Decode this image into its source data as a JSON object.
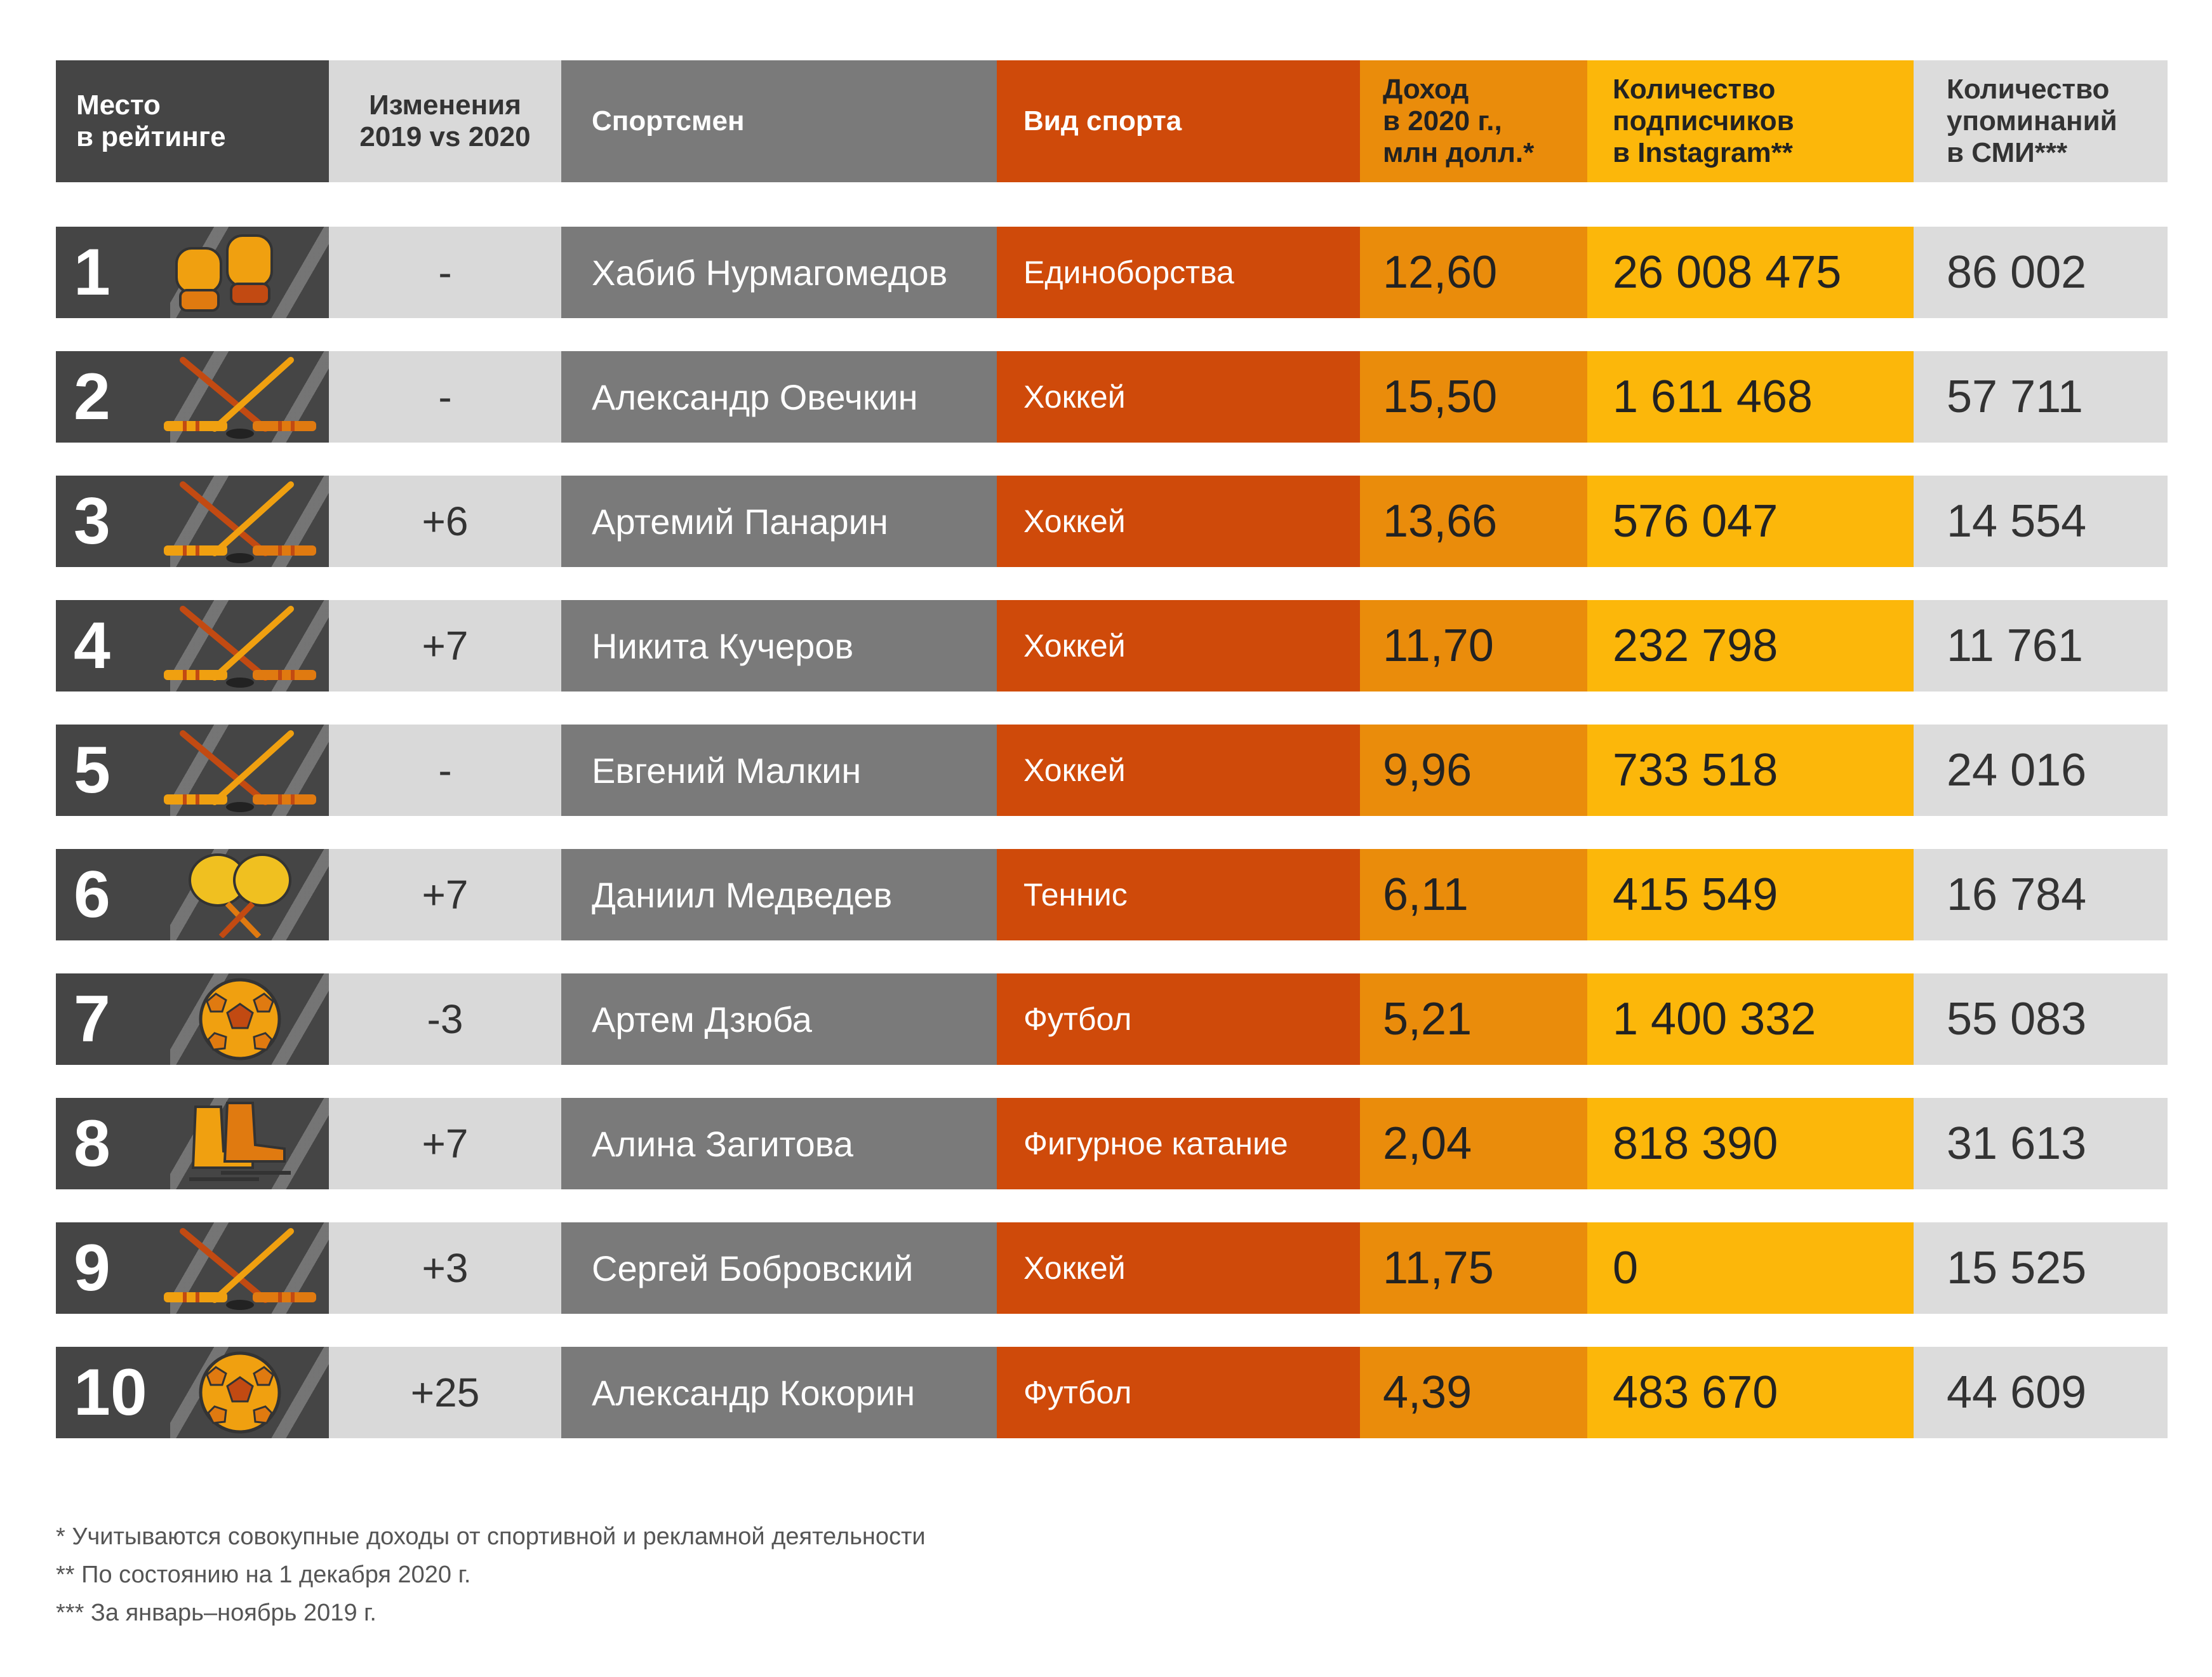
{
  "header": {
    "rank": "Место\nв рейтинге",
    "change": "Изменения\n2019 vs 2020",
    "athlete": "Спортсмен",
    "sport": "Вид спорта",
    "income": "Доход\nв 2020 г.,\nмлн долл.*",
    "followers": "Количество\nподписчиков\nв Instagram**",
    "mentions": "Количество\nупоминаний\nв СМИ***"
  },
  "rows": [
    {
      "rank": "1",
      "icon": "gloves-icon",
      "change": "-",
      "athlete": "Хабиб Нурмагомедов",
      "sport": "Единоборства",
      "income": "12,60",
      "followers": "26 008 475",
      "mentions": "86 002"
    },
    {
      "rank": "2",
      "icon": "hockey-icon",
      "change": "-",
      "athlete": "Александр Овечкин",
      "sport": "Хоккей",
      "income": "15,50",
      "followers": "1 611 468",
      "mentions": "57 711"
    },
    {
      "rank": "3",
      "icon": "hockey-icon",
      "change": "+6",
      "athlete": "Артемий Панарин",
      "sport": "Хоккей",
      "income": "13,66",
      "followers": "576 047",
      "mentions": "14 554"
    },
    {
      "rank": "4",
      "icon": "hockey-icon",
      "change": "+7",
      "athlete": "Никита Кучеров",
      "sport": "Хоккей",
      "income": "11,70",
      "followers": "232 798",
      "mentions": "11 761"
    },
    {
      "rank": "5",
      "icon": "hockey-icon",
      "change": "-",
      "athlete": "Евгений Малкин",
      "sport": "Хоккей",
      "income": "9,96",
      "followers": "733 518",
      "mentions": "24 016"
    },
    {
      "rank": "6",
      "icon": "tennis-icon",
      "change": "+7",
      "athlete": "Даниил Медведев",
      "sport": "Теннис",
      "income": "6,11",
      "followers": "415 549",
      "mentions": "16 784"
    },
    {
      "rank": "7",
      "icon": "football-icon",
      "change": "-3",
      "athlete": "Артем Дзюба",
      "sport": "Футбол",
      "income": "5,21",
      "followers": "1 400 332",
      "mentions": "55 083"
    },
    {
      "rank": "8",
      "icon": "skates-icon",
      "change": "+7",
      "athlete": "Алина Загитова",
      "sport": "Фигурное катание",
      "income": "2,04",
      "followers": "818 390",
      "mentions": "31 613"
    },
    {
      "rank": "9",
      "icon": "hockey-icon",
      "change": "+3",
      "athlete": "Сергей Бобровский",
      "sport": "Хоккей",
      "income": "11,75",
      "followers": "0",
      "mentions": "15 525"
    },
    {
      "rank": "10",
      "icon": "football-icon",
      "change": "+25",
      "athlete": "Александр Кокорин",
      "sport": "Футбол",
      "income": "4,39",
      "followers": "483 670",
      "mentions": "44 609"
    }
  ],
  "footnotes": [
    "* Учитываются совокупные доходы от спортивной и рекламной деятельности",
    "** По состоянию на 1 декабря 2020 г.",
    "*** За январь–ноябрь 2019 г."
  ],
  "colors": {
    "rank": "#454545",
    "change": "#d9d9d9",
    "athlete": "#7a7a7a",
    "sport": "#cf4a0a",
    "income": "#ea8c0b",
    "followers": "#fcb70a",
    "mentions": "#dcdcdc"
  }
}
